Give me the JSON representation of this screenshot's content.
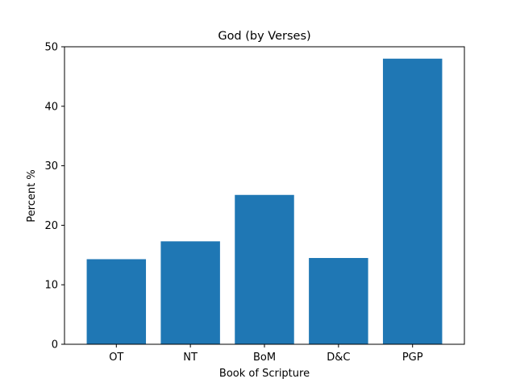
{
  "chart_data": {
    "type": "bar",
    "title": "God (by Verses)",
    "xlabel": "Book of Scripture",
    "ylabel": "Percent %",
    "categories": [
      "OT",
      "NT",
      "BoM",
      "D&C",
      "PGP"
    ],
    "values": [
      14.3,
      17.3,
      25.1,
      14.5,
      48.0
    ],
    "ylim": [
      0,
      50
    ],
    "yticks": [
      0,
      10,
      20,
      30,
      40,
      50
    ],
    "bar_color": "#1f77b4",
    "grid": false,
    "legend": "none"
  }
}
